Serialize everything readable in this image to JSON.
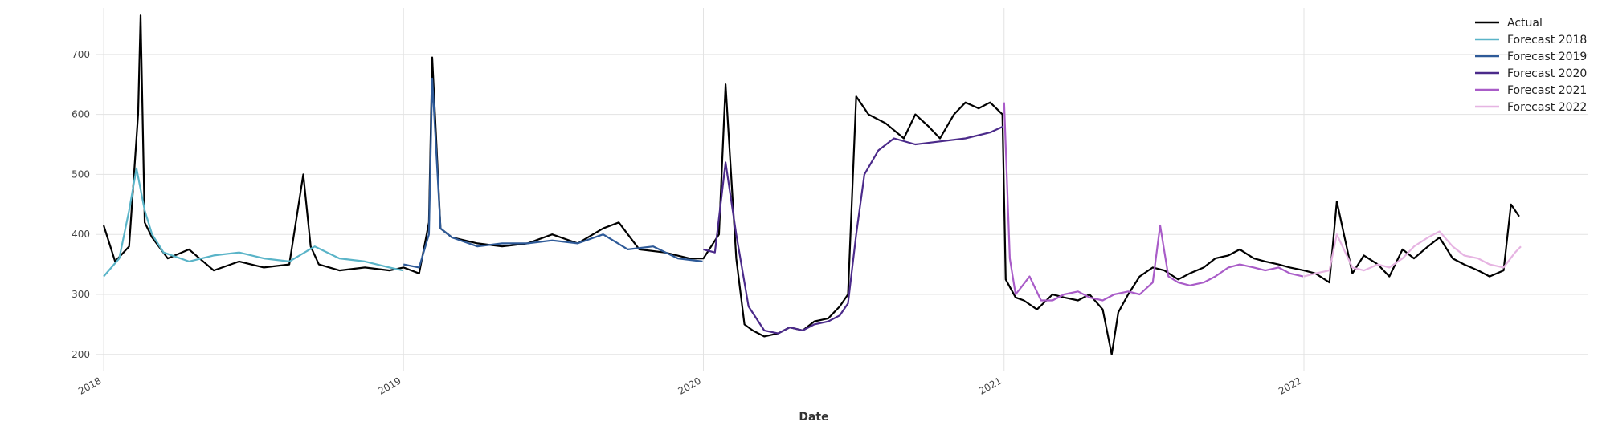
{
  "chart_data": {
    "type": "line",
    "title": "",
    "xlabel": "Date",
    "ylabel": "",
    "xlim": [
      "2018-01-01",
      "2022-12-31"
    ],
    "ylim": [
      173,
      780
    ],
    "x_ticks": [
      "2018",
      "2019",
      "2020",
      "2021",
      "2022"
    ],
    "y_ticks": [
      200,
      300,
      400,
      500,
      600,
      700
    ],
    "grid": true,
    "legend_position": "top-right",
    "colors": {
      "Actual": "#000000",
      "Forecast 2018": "#5ab4c8",
      "Forecast 2019": "#2e5a98",
      "Forecast 2020": "#4b2a8a",
      "Forecast 2021": "#a95cc8",
      "Forecast 2022": "#e6b4e2"
    },
    "series": [
      {
        "name": "Actual",
        "x": [
          "2018-01-01",
          "2018-01-15",
          "2018-02-01",
          "2018-02-12",
          "2018-02-15",
          "2018-02-20",
          "2018-03-01",
          "2018-03-20",
          "2018-04-15",
          "2018-05-15",
          "2018-06-15",
          "2018-07-15",
          "2018-08-15",
          "2018-09-01",
          "2018-09-10",
          "2018-09-20",
          "2018-10-15",
          "2018-11-15",
          "2018-12-15",
          "2019-01-01",
          "2019-01-20",
          "2019-02-01",
          "2019-02-05",
          "2019-02-15",
          "2019-03-01",
          "2019-04-01",
          "2019-05-01",
          "2019-06-01",
          "2019-07-01",
          "2019-08-01",
          "2019-09-01",
          "2019-09-20",
          "2019-10-15",
          "2019-11-15",
          "2019-12-15",
          "2020-01-01",
          "2020-01-20",
          "2020-01-28",
          "2020-02-10",
          "2020-02-20",
          "2020-03-01",
          "2020-03-15",
          "2020-04-01",
          "2020-04-15",
          "2020-05-01",
          "2020-05-15",
          "2020-06-01",
          "2020-06-15",
          "2020-06-25",
          "2020-07-05",
          "2020-07-20",
          "2020-08-10",
          "2020-09-01",
          "2020-09-15",
          "2020-10-01",
          "2020-10-15",
          "2020-11-01",
          "2020-11-15",
          "2020-12-01",
          "2020-12-15",
          "2020-12-30",
          "2021-01-03",
          "2021-01-15",
          "2021-01-25",
          "2021-02-10",
          "2021-03-01",
          "2021-03-15",
          "2021-04-01",
          "2021-04-15",
          "2021-05-01",
          "2021-05-12",
          "2021-05-20",
          "2021-06-01",
          "2021-06-15",
          "2021-07-01",
          "2021-07-15",
          "2021-08-01",
          "2021-08-15",
          "2021-09-01",
          "2021-09-15",
          "2021-10-01",
          "2021-10-15",
          "2021-11-01",
          "2021-11-15",
          "2021-12-01",
          "2021-12-15",
          "2022-01-01",
          "2022-01-15",
          "2022-02-01",
          "2022-02-10",
          "2022-03-01",
          "2022-03-15",
          "2022-04-01",
          "2022-04-15",
          "2022-05-01",
          "2022-05-15",
          "2022-06-01",
          "2022-06-15",
          "2022-07-01",
          "2022-07-15",
          "2022-08-01",
          "2022-08-15",
          "2022-09-01",
          "2022-09-10",
          "2022-09-20"
        ],
        "y": [
          415,
          355,
          380,
          600,
          765,
          420,
          395,
          360,
          375,
          340,
          355,
          345,
          350,
          500,
          380,
          350,
          340,
          345,
          340,
          345,
          335,
          420,
          695,
          410,
          395,
          385,
          380,
          385,
          400,
          385,
          410,
          420,
          375,
          370,
          360,
          360,
          400,
          650,
          360,
          250,
          240,
          230,
          235,
          245,
          240,
          255,
          260,
          280,
          300,
          630,
          600,
          585,
          560,
          600,
          580,
          560,
          600,
          620,
          610,
          620,
          600,
          325,
          295,
          290,
          275,
          300,
          295,
          290,
          300,
          275,
          200,
          270,
          300,
          330,
          345,
          340,
          325,
          335,
          345,
          360,
          365,
          375,
          360,
          355,
          350,
          345,
          340,
          335,
          320,
          455,
          335,
          365,
          350,
          330,
          375,
          360,
          380,
          395,
          360,
          350,
          340,
          330,
          340,
          450,
          430
        ]
      },
      {
        "name": "Forecast 2018",
        "x": [
          "2018-01-01",
          "2018-01-20",
          "2018-02-01",
          "2018-02-10",
          "2018-02-20",
          "2018-03-01",
          "2018-03-15",
          "2018-04-15",
          "2018-05-15",
          "2018-06-15",
          "2018-07-15",
          "2018-08-15",
          "2018-09-15",
          "2018-10-15",
          "2018-11-15",
          "2018-12-15",
          "2018-12-31"
        ],
        "y": [
          330,
          360,
          440,
          510,
          440,
          400,
          370,
          355,
          365,
          370,
          360,
          355,
          380,
          360,
          355,
          345,
          340
        ]
      },
      {
        "name": "Forecast 2019",
        "x": [
          "2019-01-01",
          "2019-01-20",
          "2019-02-01",
          "2019-02-05",
          "2019-02-15",
          "2019-03-01",
          "2019-04-01",
          "2019-05-01",
          "2019-06-01",
          "2019-07-01",
          "2019-08-01",
          "2019-09-01",
          "2019-10-01",
          "2019-11-01",
          "2019-12-01",
          "2019-12-31"
        ],
        "y": [
          350,
          345,
          400,
          660,
          410,
          395,
          380,
          385,
          385,
          390,
          385,
          400,
          375,
          380,
          360,
          355
        ]
      },
      {
        "name": "Forecast 2020",
        "x": [
          "2020-01-01",
          "2020-01-15",
          "2020-01-28",
          "2020-02-10",
          "2020-02-25",
          "2020-03-15",
          "2020-04-01",
          "2020-04-15",
          "2020-05-01",
          "2020-05-15",
          "2020-06-01",
          "2020-06-15",
          "2020-06-25",
          "2020-07-05",
          "2020-07-15",
          "2020-08-01",
          "2020-08-20",
          "2020-09-15",
          "2020-10-15",
          "2020-11-15",
          "2020-12-15",
          "2020-12-31"
        ],
        "y": [
          375,
          370,
          520,
          400,
          280,
          240,
          235,
          245,
          240,
          250,
          255,
          265,
          285,
          400,
          500,
          540,
          560,
          550,
          555,
          560,
          570,
          580
        ]
      },
      {
        "name": "Forecast 2021",
        "x": [
          "2021-01-01",
          "2021-01-08",
          "2021-01-15",
          "2021-02-01",
          "2021-02-15",
          "2021-03-01",
          "2021-03-15",
          "2021-04-01",
          "2021-04-15",
          "2021-05-01",
          "2021-05-15",
          "2021-06-01",
          "2021-06-15",
          "2021-07-01",
          "2021-07-10",
          "2021-07-20",
          "2021-08-01",
          "2021-08-15",
          "2021-09-01",
          "2021-09-15",
          "2021-10-01",
          "2021-10-15",
          "2021-11-01",
          "2021-11-15",
          "2021-12-01",
          "2021-12-15",
          "2021-12-31"
        ],
        "y": [
          620,
          360,
          300,
          330,
          290,
          290,
          300,
          305,
          295,
          290,
          300,
          305,
          300,
          320,
          415,
          330,
          320,
          315,
          320,
          330,
          345,
          350,
          345,
          340,
          345,
          335,
          330
        ]
      },
      {
        "name": "Forecast 2022",
        "x": [
          "2022-01-01",
          "2022-01-15",
          "2022-02-01",
          "2022-02-10",
          "2022-03-01",
          "2022-03-15",
          "2022-04-01",
          "2022-04-15",
          "2022-05-01",
          "2022-05-15",
          "2022-06-01",
          "2022-06-15",
          "2022-07-01",
          "2022-07-15",
          "2022-08-01",
          "2022-08-15",
          "2022-09-01",
          "2022-09-15",
          "2022-09-22"
        ],
        "y": [
          330,
          335,
          340,
          400,
          345,
          340,
          350,
          345,
          360,
          380,
          395,
          405,
          380,
          365,
          360,
          350,
          345,
          370,
          380
        ]
      }
    ]
  }
}
